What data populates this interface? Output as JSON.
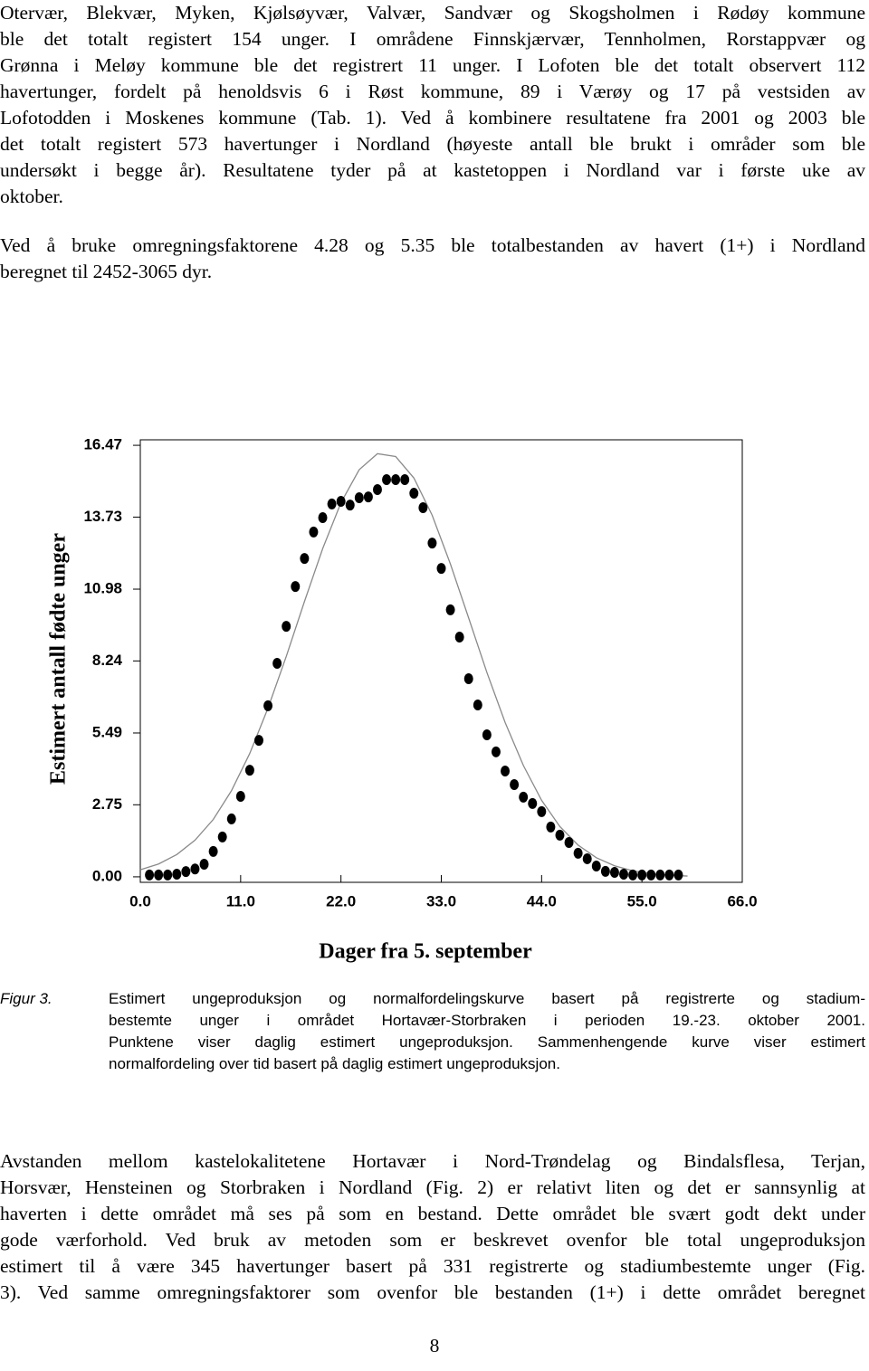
{
  "paragraphs": [
    {
      "lines": [
        "Otervær, Blekvær, Myken, Kjølsøyvær, Valvær, Sandvær og Skogsholmen i Rødøy kommune",
        "ble det totalt registert 154 unger. I områdene Finnskjærvær, Tennholmen, Rorstappvær og",
        "Grønna i Meløy kommune ble det registrert 11 unger. I Lofoten ble det totalt observert 112",
        "havertunger, fordelt på henoldsvis 6 i Røst kommune, 89 i Værøy og 17 på vestsiden av",
        "Lofotodden i Moskenes kommune (Tab. 1). Ved å kombinere resultatene fra 2001 og 2003 ble",
        "det totalt registert 573 havertunger i Nordland (høyeste antall ble brukt i områder som ble",
        "undersøkt i begge år). Resultatene tyder på at kastetoppen i Nordland var i første uke av",
        "oktober."
      ]
    },
    {
      "lines": [
        "Ved å bruke omregningsfaktorene 4.28 og 5.35 ble totalbestanden av havert (1+) i Nordland",
        "beregnet til 2452-3065 dyr."
      ]
    },
    {
      "lines": [
        "Avstanden mellom kastelokalitetene Hortavær i Nord-Trøndelag og Bindalsflesa, Terjan,",
        "Horsvær, Hensteinen og Storbraken i Nordland (Fig. 2) er relativt liten og det er sannsynlig at",
        "haverten i dette området må ses på som en bestand. Dette området ble svært godt dekt under",
        "gode værforhold. Ved bruk av metoden som er beskrevet ovenfor ble total ungeproduksjon",
        "estimert til å være 345 havertunger basert på 331 registrerte og stadiumbestemte unger (Fig.",
        "3). Ved samme omregningsfaktorer som ovenfor ble bestanden (1+) i dette området beregnet"
      ]
    }
  ],
  "figure_caption": {
    "label": "Figur 3.",
    "lines": [
      "Estimert ungeproduksjon og normalfordelingskurve basert på registrerte og stadium-",
      "bestemte unger i området Hortavær-Storbraken i perioden 19.-23. oktober 2001.",
      "Punktene viser daglig estimert ungeproduksjon. Sammenhengende kurve viser estimert",
      "normalfordeling over tid basert på daglig estimert ungeproduksjon."
    ]
  },
  "page_number": "8",
  "chart_data": {
    "type": "scatter",
    "x_label": "Dager fra 5. september",
    "y_label": "Estimert antall fødte unger",
    "xlim": [
      0,
      66
    ],
    "ylim": [
      -0.21,
      16.68
    ],
    "xticks": [
      {
        "value": 0,
        "label": "0.0"
      },
      {
        "value": 11,
        "label": "11.0"
      },
      {
        "value": 22,
        "label": "22.0"
      },
      {
        "value": 33,
        "label": "33.0"
      },
      {
        "value": 44,
        "label": "44.0"
      },
      {
        "value": 55,
        "label": "55.0"
      },
      {
        "value": 66,
        "label": "66.0"
      }
    ],
    "yticks": [
      {
        "value": 0,
        "label": "0.00"
      },
      2.75,
      5.49,
      8.24,
      10.98,
      13.73,
      16.47
    ],
    "grid": false,
    "series": [
      {
        "type": "scatter",
        "color": "#000000",
        "x": [
          1,
          2,
          3,
          4,
          5,
          6,
          7,
          8,
          9,
          10,
          11,
          12,
          13,
          14,
          15,
          16,
          17,
          18,
          19,
          20,
          21,
          22,
          23,
          24,
          25,
          26,
          27,
          28,
          29,
          30,
          31,
          32,
          33,
          34,
          35,
          36,
          37,
          38,
          39,
          40,
          41,
          42,
          43,
          44,
          45,
          46,
          47,
          48,
          49,
          50,
          51,
          52,
          53,
          54,
          55,
          56,
          57,
          58,
          59
        ],
        "values": [
          0.07,
          0.07,
          0.07,
          0.1,
          0.2,
          0.3,
          0.48,
          0.97,
          1.52,
          2.21,
          3.07,
          4.07,
          5.21,
          6.53,
          8.15,
          9.56,
          11.08,
          12.15,
          13.16,
          13.71,
          14.23,
          14.33,
          14.19,
          14.47,
          14.5,
          14.78,
          15.16,
          15.16,
          15.16,
          14.64,
          14.09,
          12.74,
          11.77,
          10.19,
          9.15,
          7.56,
          6.56,
          5.42,
          4.77,
          4.04,
          3.52,
          3.04,
          2.8,
          2.49,
          1.9,
          1.59,
          1.31,
          0.9,
          0.69,
          0.41,
          0.21,
          0.17,
          0.1,
          0.07,
          0.07,
          0.07,
          0.07,
          0.07,
          0.07
        ]
      },
      {
        "type": "line",
        "color": "#8a8a8a",
        "x": [
          0,
          2,
          4,
          6,
          8,
          10,
          12,
          14,
          16,
          18,
          20,
          22,
          24,
          26,
          28,
          30,
          32,
          34,
          36,
          38,
          40,
          42,
          44,
          46,
          48,
          50,
          52,
          54,
          56,
          58,
          60
        ],
        "values": [
          0.27,
          0.49,
          0.85,
          1.4,
          2.19,
          3.29,
          4.71,
          6.44,
          8.41,
          10.51,
          12.53,
          14.28,
          15.54,
          16.15,
          16.04,
          15.22,
          13.8,
          11.94,
          9.88,
          7.8,
          5.89,
          4.25,
          2.92,
          1.92,
          1.21,
          0.73,
          0.42,
          0.23,
          0.12,
          0.06,
          0.03
        ]
      }
    ]
  }
}
